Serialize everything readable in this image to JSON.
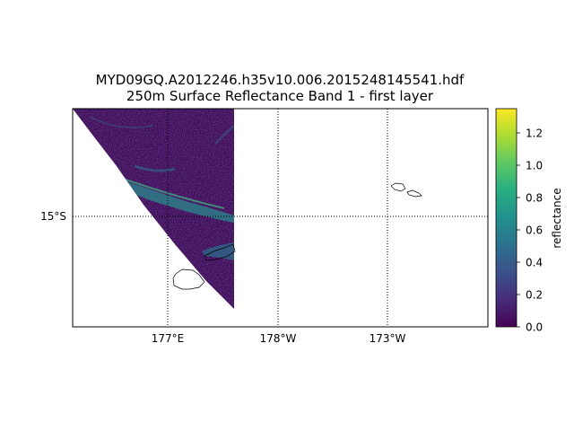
{
  "title": {
    "line1": "MYD09GQ.A2012246.h35v10.006.2015248145541.hdf",
    "line2": "250m Surface Reflectance Band 1 - first layer"
  },
  "map": {
    "lon_ticks": [
      "177°E",
      "178°W",
      "173°W"
    ],
    "lat_ticks": [
      "15°S"
    ],
    "graticule": "dotted",
    "colormap": "viridis",
    "colormap_stops": [
      "#440154",
      "#472c7a",
      "#3b518b",
      "#2c718e",
      "#21908d",
      "#27ad81",
      "#5cc863",
      "#aadc32",
      "#fde725"
    ]
  },
  "colorbar": {
    "label": "reflectance",
    "min": 0.0,
    "max": 1.35,
    "ticks": [
      "0.0",
      "0.2",
      "0.4",
      "0.6",
      "0.8",
      "1.0",
      "1.2"
    ],
    "tick_values": [
      0.0,
      0.2,
      0.4,
      0.6,
      0.8,
      1.0,
      1.2
    ]
  }
}
